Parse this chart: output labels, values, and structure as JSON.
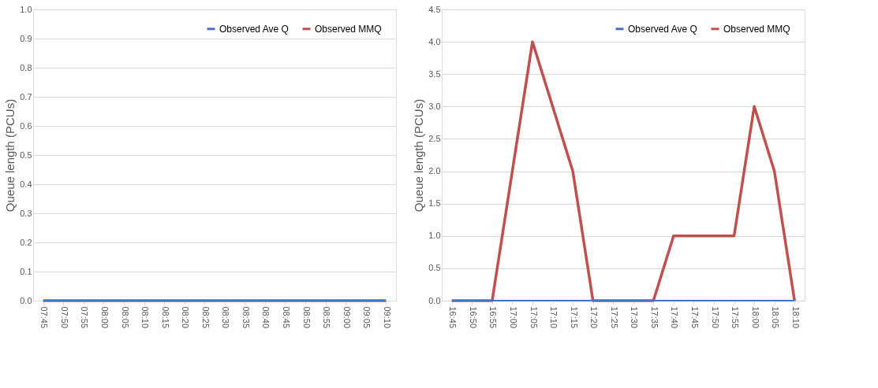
{
  "chart_data": [
    {
      "type": "line",
      "ylabel": "Queue length (PCUs)",
      "categories": [
        "07:45",
        "07:50",
        "07:55",
        "08:00",
        "08:05",
        "08:10",
        "08:15",
        "08:20",
        "08:25",
        "08:30",
        "08:35",
        "08:40",
        "08:45",
        "08:50",
        "08:55",
        "09:00",
        "09:05",
        "09:10"
      ],
      "series": [
        {
          "name": "Observed Ave Q",
          "color": "#4472c4",
          "values": [
            0,
            0,
            0,
            0,
            0,
            0,
            0,
            0,
            0,
            0,
            0,
            0,
            0,
            0,
            0,
            0,
            0,
            0
          ]
        },
        {
          "name": "Observed MMQ",
          "color": "#c0504d",
          "values": [
            0,
            0,
            0,
            0,
            0,
            0,
            0,
            0,
            0,
            0,
            0,
            0,
            0,
            0,
            0,
            0,
            0,
            0
          ]
        }
      ],
      "ylim": [
        0,
        1
      ],
      "yticks": [
        {
          "value": 0,
          "label": "0.0"
        },
        0.1,
        0.2,
        0.3,
        0.4,
        0.5,
        0.6,
        0.7,
        0.8,
        0.9,
        {
          "value": 1,
          "label": "1.0"
        }
      ],
      "grid": "y",
      "legend": "top right",
      "marker": "none",
      "line_style": "solid"
    },
    {
      "type": "line",
      "ylabel": "Queue length (PCUs)",
      "categories": [
        "16:45",
        "16:50",
        "16:55",
        "17:00",
        "17:05",
        "17:10",
        "17:15",
        "17:20",
        "17:25",
        "17:30",
        "17:35",
        "17:40",
        "17:45",
        "17:50",
        "17:55",
        "18:00",
        "18:05",
        "18:10"
      ],
      "series": [
        {
          "name": "Observed Ave Q",
          "color": "#4472c4",
          "values": [
            0,
            0,
            0,
            0,
            0,
            0,
            0,
            0,
            0,
            0,
            0,
            0,
            0,
            0,
            0,
            0,
            0,
            0
          ]
        },
        {
          "name": "Observed MMQ",
          "color": "#c0504d",
          "values": [
            0,
            0,
            0,
            2,
            4,
            3,
            2,
            0,
            0,
            0,
            0,
            1,
            1,
            1,
            1,
            3,
            2,
            0
          ]
        }
      ],
      "ylim": [
        0,
        4.5
      ],
      "yticks": [
        {
          "value": 0,
          "label": "0.0"
        },
        0.5,
        {
          "value": 1,
          "label": "1.0"
        },
        1.5,
        {
          "value": 2,
          "label": "2.0"
        },
        2.5,
        {
          "value": 3,
          "label": "3.0"
        },
        3.5,
        {
          "value": 4,
          "label": "4.0"
        },
        4.5
      ],
      "grid": "y",
      "legend": "top right",
      "marker": "none",
      "line_style": "solid"
    }
  ]
}
